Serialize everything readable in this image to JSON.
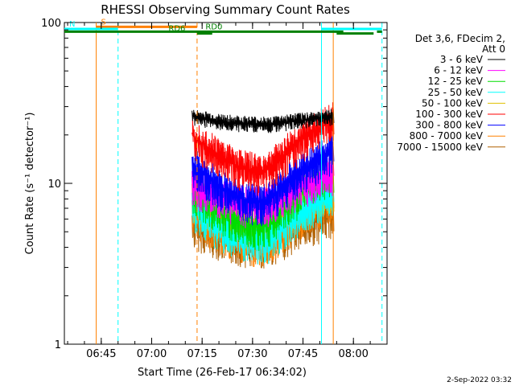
{
  "chart_data": {
    "type": "line",
    "title": "RHESSI Observing Summary Count Rates",
    "xlabel": "Start Time (26-Feb-17 06:34:02)",
    "ylabel": "Count Rate (s⁻¹ detector⁻¹)",
    "y_scale": "log",
    "ylim": [
      1,
      100
    ],
    "xlim": [
      "06:34:02",
      "08:10:00"
    ],
    "x_ticks": [
      "06:45",
      "07:00",
      "07:15",
      "07:30",
      "07:45",
      "08:00"
    ],
    "y_ticks": [
      "1",
      "10",
      "100"
    ],
    "grid": false,
    "legend_placement": "right",
    "legend_header": [
      "Det 3,6, FDecim 2,",
      "Att 0"
    ],
    "data_start": "07:12:00",
    "data_end": "07:54:00",
    "series": [
      {
        "name": "3 - 6 keV",
        "color": "#000000",
        "level_start": 26,
        "level_mid": 23,
        "level_end": 23
      },
      {
        "name": "6 - 12 keV",
        "color": "#ff00ff",
        "level_start": 10,
        "level_mid": 7,
        "level_end": 9
      },
      {
        "name": "12 - 25 keV",
        "color": "#00dd00",
        "level_start": 9,
        "level_mid": 5,
        "level_end": 8
      },
      {
        "name": "25 - 50 keV",
        "color": "#00ffff",
        "level_start": 7,
        "level_mid": 4,
        "level_end": 6
      },
      {
        "name": "50 - 100 keV",
        "color": "#e0c000",
        "level_start": 8,
        "level_mid": 5,
        "level_end": 6.5
      },
      {
        "name": "100 - 300 keV",
        "color": "#ff0000",
        "level_start": 20,
        "level_mid": 11,
        "level_end": 16
      },
      {
        "name": "300 - 800 keV",
        "color": "#0000ff",
        "level_start": 13,
        "level_mid": 7,
        "level_end": 10
      },
      {
        "name": "800 - 7000 keV",
        "color": "#ff8000",
        "level_start": 6.5,
        "level_mid": 4,
        "level_end": 5.5
      },
      {
        "name": "7000 - 15000 keV",
        "color": "#b06000",
        "level_start": 5.5,
        "level_mid": 4,
        "level_end": 5
      }
    ],
    "annotations": [
      {
        "label": "S",
        "color": "#ff8000",
        "y": 86,
        "x_start": "06:43:30",
        "x_end": "07:13:30"
      },
      {
        "label": "N",
        "color": "#00ffff",
        "y": 79,
        "x_start": "06:34:02",
        "x_end": "06:50:00"
      },
      {
        "label": "N",
        "color": "#00ffff",
        "y": 79,
        "x_start": "07:50:30",
        "x_end": "08:08:30",
        "hidden_label": true
      },
      {
        "label": "RD0",
        "color": "#008000",
        "y": 70,
        "x_start": "06:34:02",
        "x_end": "07:57:00",
        "label_x": "07:16:00"
      },
      {
        "label": "RD0",
        "color": "#008000",
        "y": 70,
        "x_start": "08:07:00",
        "x_end": "08:08:30",
        "hidden_label": true
      },
      {
        "label": "RD6",
        "color": "#008000",
        "y": 64,
        "x_start": "07:13:30",
        "x_end": "07:18:00",
        "label_x": "07:05:00"
      },
      {
        "label": "RD6",
        "color": "#008000",
        "y": 64,
        "x_start": "07:55:00",
        "x_end": "08:06:00",
        "hidden_label": true
      }
    ],
    "vlines": [
      {
        "x": "06:43:30",
        "color": "#ff8000",
        "style": "solid"
      },
      {
        "x": "06:50:00",
        "color": "#00ffff",
        "style": "dashed"
      },
      {
        "x": "07:13:30",
        "color": "#ff8000",
        "style": "dashed"
      },
      {
        "x": "07:50:30",
        "color": "#00ffff",
        "style": "solid"
      },
      {
        "x": "07:54:00",
        "color": "#ff8000",
        "style": "solid"
      },
      {
        "x": "08:08:30",
        "color": "#00ffff",
        "style": "dashed"
      }
    ]
  },
  "footer": {
    "timestamp": "2-Sep-2022 03:32"
  }
}
